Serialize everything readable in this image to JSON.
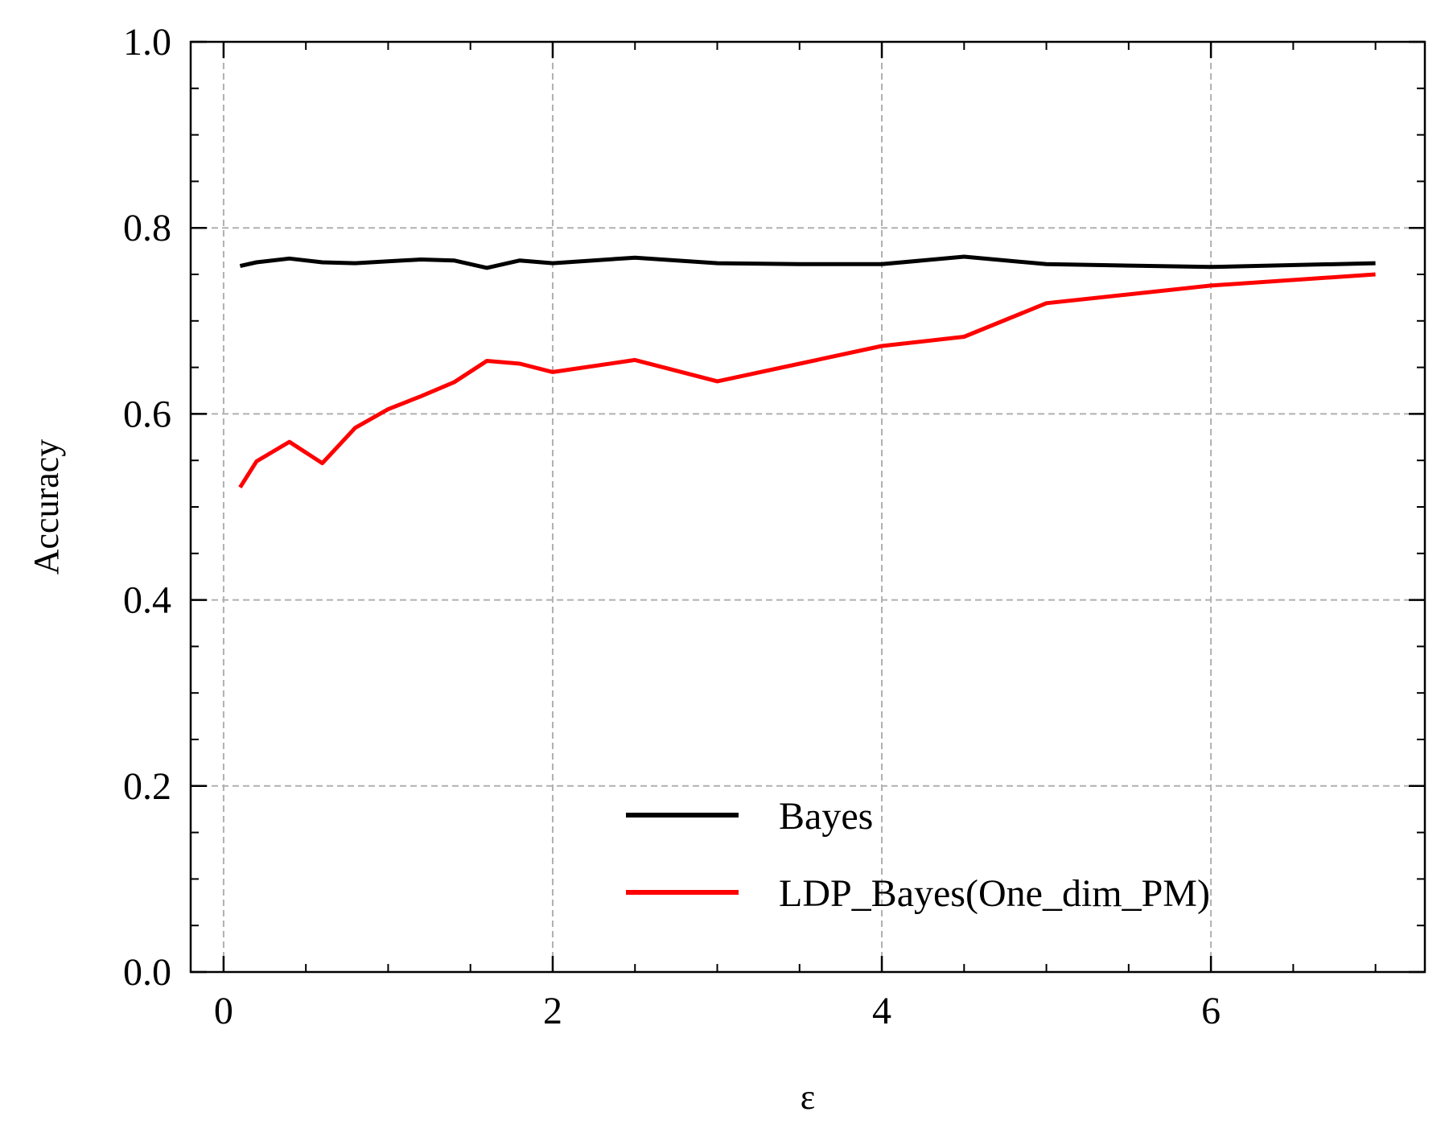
{
  "chart_data": {
    "type": "line",
    "title": "",
    "xlabel": "ε",
    "ylabel": "Accuracy",
    "xlim": [
      -0.2,
      7.3
    ],
    "ylim": [
      0.0,
      1.0
    ],
    "xticks": [
      0,
      2,
      4,
      6
    ],
    "xtick_labels": [
      "0",
      "2",
      "4",
      "6"
    ],
    "yticks": [
      0.0,
      0.2,
      0.4,
      0.6,
      0.8,
      1.0
    ],
    "ytick_labels": [
      "0.0",
      "0.2",
      "0.4",
      "0.6",
      "0.8",
      "1.0"
    ],
    "grid": true,
    "legend_position": "lower-right",
    "series": [
      {
        "name": "Bayes",
        "color": "#000000",
        "x": [
          0.1,
          0.2,
          0.4,
          0.6,
          0.8,
          1.0,
          1.2,
          1.4,
          1.6,
          1.8,
          2.0,
          2.5,
          3.0,
          3.5,
          4.0,
          4.5,
          5.0,
          6.0,
          7.0
        ],
        "y": [
          0.759,
          0.763,
          0.767,
          0.763,
          0.762,
          0.764,
          0.766,
          0.765,
          0.757,
          0.765,
          0.762,
          0.768,
          0.762,
          0.761,
          0.761,
          0.769,
          0.761,
          0.758,
          0.762
        ]
      },
      {
        "name": "LDP_Bayes(One_dim_PM)",
        "color": "#ff0000",
        "x": [
          0.1,
          0.2,
          0.4,
          0.6,
          0.8,
          1.0,
          1.2,
          1.4,
          1.6,
          1.8,
          2.0,
          2.5,
          3.0,
          3.5,
          4.0,
          4.5,
          5.0,
          6.0,
          7.0
        ],
        "y": [
          0.521,
          0.549,
          0.57,
          0.547,
          0.585,
          0.605,
          0.619,
          0.634,
          0.657,
          0.654,
          0.645,
          0.658,
          0.635,
          0.654,
          0.673,
          0.683,
          0.719,
          0.738,
          0.75
        ]
      }
    ]
  }
}
